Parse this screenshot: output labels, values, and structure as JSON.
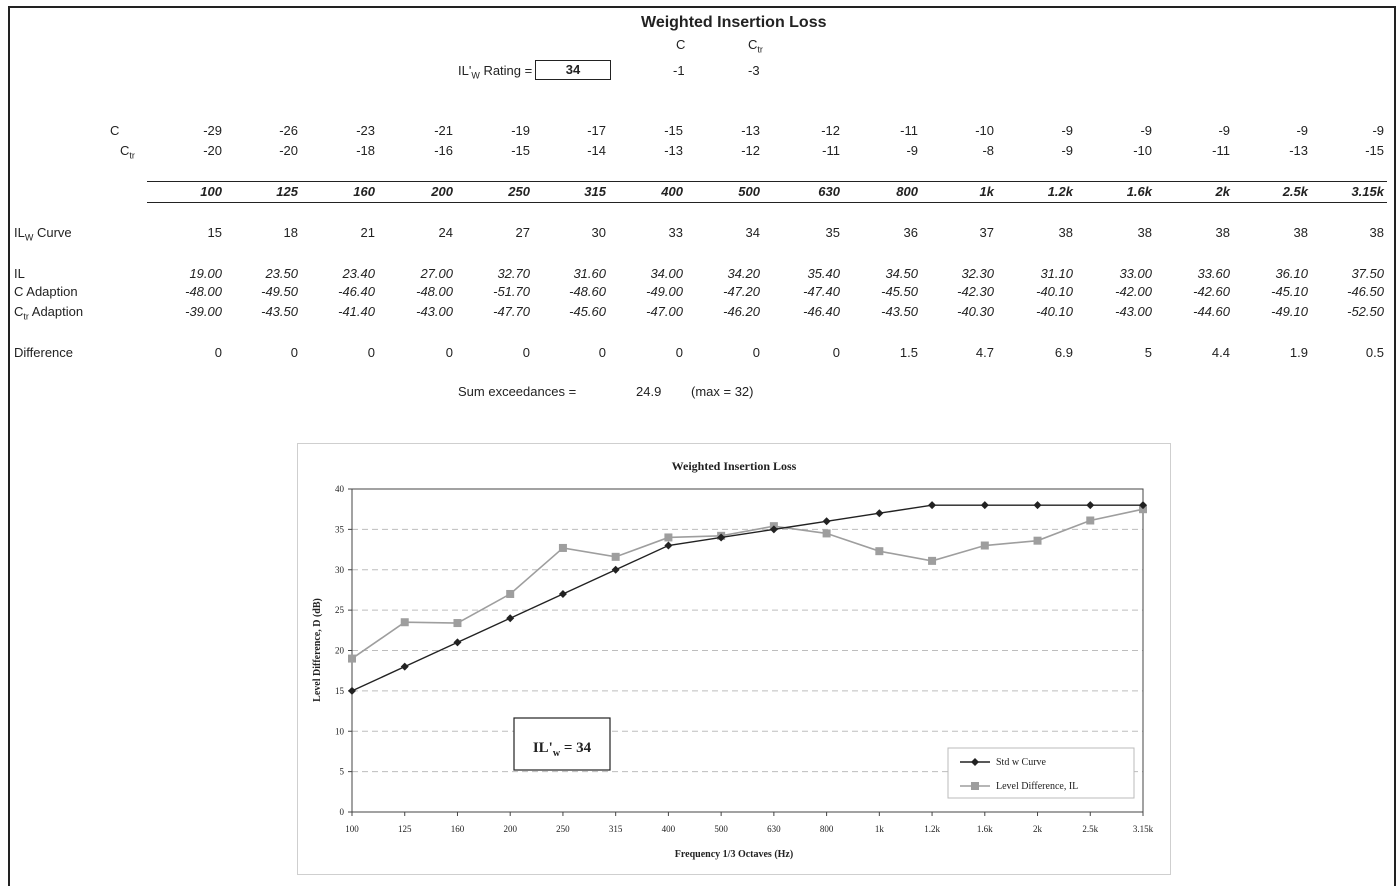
{
  "header": {
    "title": "Weighted Insertion Loss",
    "c_col_label": "C",
    "ctr_col_label": "C",
    "ctr_sub": "tr",
    "rating_label": "IL'",
    "rating_label_sub": "W",
    "rating_label_tail": " Rating =",
    "rating_value": "34",
    "c_value": "-1",
    "ctr_value": "-3"
  },
  "table": {
    "row_labels": {
      "c": "C",
      "ctr": "C",
      "ctr_sub": "tr",
      "ilw": "IL",
      "ilw_sub": "W",
      "ilw_tail": " Curve",
      "il": "IL",
      "c_adaption": "C Adaption",
      "ctr_adaption": "C",
      "ctr_adaption_sub": "tr",
      "ctr_adaption_tail": " Adaption",
      "difference": "Difference"
    },
    "frequencies": [
      "100",
      "125",
      "160",
      "200",
      "250",
      "315",
      "400",
      "500",
      "630",
      "800",
      "1k",
      "1.2k",
      "1.6k",
      "2k",
      "2.5k",
      "3.15k"
    ],
    "c_row": [
      "-29",
      "-26",
      "-23",
      "-21",
      "-19",
      "-17",
      "-15",
      "-13",
      "-12",
      "-11",
      "-10",
      "-9",
      "-9",
      "-9",
      "-9",
      "-9"
    ],
    "ctr_row": [
      "-20",
      "-20",
      "-18",
      "-16",
      "-15",
      "-14",
      "-13",
      "-12",
      "-11",
      "-9",
      "-8",
      "-9",
      "-10",
      "-11",
      "-13",
      "-15"
    ],
    "ilw_curve": [
      "15",
      "18",
      "21",
      "24",
      "27",
      "30",
      "33",
      "34",
      "35",
      "36",
      "37",
      "38",
      "38",
      "38",
      "38",
      "38"
    ],
    "il": [
      "19.00",
      "23.50",
      "23.40",
      "27.00",
      "32.70",
      "31.60",
      "34.00",
      "34.20",
      "35.40",
      "34.50",
      "32.30",
      "31.10",
      "33.00",
      "33.60",
      "36.10",
      "37.50"
    ],
    "c_adaption": [
      "-48.00",
      "-49.50",
      "-46.40",
      "-48.00",
      "-51.70",
      "-48.60",
      "-49.00",
      "-47.20",
      "-47.40",
      "-45.50",
      "-42.30",
      "-40.10",
      "-42.00",
      "-42.60",
      "-45.10",
      "-46.50"
    ],
    "ctr_adaption": [
      "-39.00",
      "-43.50",
      "-41.40",
      "-43.00",
      "-47.70",
      "-45.60",
      "-47.00",
      "-46.20",
      "-46.40",
      "-43.50",
      "-40.30",
      "-40.10",
      "-43.00",
      "-44.60",
      "-49.10",
      "-52.50"
    ],
    "difference": [
      "0",
      "0",
      "0",
      "0",
      "0",
      "0",
      "0",
      "0",
      "0",
      "1.5",
      "4.7",
      "6.9",
      "5",
      "4.4",
      "1.9",
      "0.5"
    ]
  },
  "summary": {
    "label": "Sum exceedances =",
    "value": "24.9",
    "max": "(max = 32)"
  },
  "chart_data": {
    "type": "line",
    "title": "Weighted Insertion Loss",
    "xlabel": "Frequency 1/3 Octaves (Hz)",
    "ylabel": "Level Difference, D (dB)",
    "categories": [
      "100",
      "125",
      "160",
      "200",
      "250",
      "315",
      "400",
      "500",
      "630",
      "800",
      "1k",
      "1.2k",
      "1.6k",
      "2k",
      "2.5k",
      "3.15k"
    ],
    "ylim": [
      0,
      40
    ],
    "yticks": [
      0,
      5,
      10,
      15,
      20,
      25,
      30,
      35,
      40
    ],
    "grid": "horizontal dashed",
    "legend": "bottom-right",
    "series": [
      {
        "name": "Std w Curve",
        "marker": "diamond",
        "color": "#222222",
        "values": [
          15,
          18,
          21,
          24,
          27,
          30,
          33,
          34,
          35,
          36,
          37,
          38,
          38,
          38,
          38,
          38
        ]
      },
      {
        "name": "Level Difference, IL",
        "marker": "square",
        "color": "#9e9e9e",
        "values": [
          19.0,
          23.5,
          23.4,
          27.0,
          32.7,
          31.6,
          34.0,
          34.2,
          35.4,
          34.5,
          32.3,
          31.1,
          33.0,
          33.6,
          36.1,
          37.5
        ]
      }
    ],
    "annotation": {
      "text": "IL'",
      "sub": "w",
      "tail": " = 34"
    }
  }
}
